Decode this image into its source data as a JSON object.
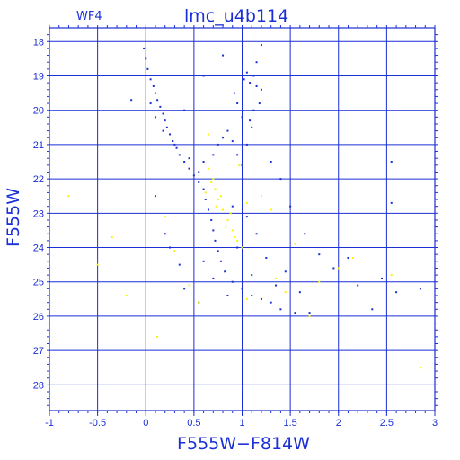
{
  "chart_data": {
    "type": "scatter",
    "title": "lmc_u4b114",
    "corner_label": "WF4",
    "xlabel": "F555W−F814W",
    "ylabel": "F555W",
    "xlim": [
      -1,
      3
    ],
    "ylim": [
      28.75,
      17.6
    ],
    "y_inverted": true,
    "grid": true,
    "xticks": [
      -1,
      -0.5,
      0,
      0.5,
      1,
      1.5,
      2,
      2.5,
      3
    ],
    "xtick_labels": [
      "-1",
      "-0.5",
      "0",
      "0.5",
      "1",
      "1.5",
      "2",
      "2.5",
      "3"
    ],
    "yticks": [
      18,
      19,
      20,
      21,
      22,
      23,
      24,
      25,
      26,
      27,
      28
    ],
    "ytick_labels": [
      "18",
      "19",
      "20",
      "21",
      "22",
      "23",
      "24",
      "25",
      "26",
      "27",
      "28"
    ],
    "colors": {
      "axes": "#1a2fd6",
      "series_blue": "#1a2fd6",
      "series_yellow": "#f5f500"
    },
    "series": [
      {
        "color": "blue",
        "points": [
          [
            -0.02,
            18.2
          ],
          [
            0.0,
            18.5
          ],
          [
            0.02,
            18.8
          ],
          [
            0.05,
            19.1
          ],
          [
            0.08,
            19.3
          ],
          [
            0.1,
            19.5
          ],
          [
            0.12,
            19.7
          ],
          [
            0.15,
            19.9
          ],
          [
            0.18,
            20.1
          ],
          [
            0.2,
            20.3
          ],
          [
            0.22,
            20.5
          ],
          [
            0.25,
            20.7
          ],
          [
            0.28,
            20.9
          ],
          [
            0.32,
            21.1
          ],
          [
            0.35,
            21.3
          ],
          [
            0.4,
            21.5
          ],
          [
            0.45,
            21.7
          ],
          [
            0.5,
            21.9
          ],
          [
            0.55,
            22.1
          ],
          [
            0.6,
            22.3
          ],
          [
            0.62,
            22.6
          ],
          [
            0.65,
            22.9
          ],
          [
            0.68,
            23.2
          ],
          [
            0.7,
            23.5
          ],
          [
            0.72,
            23.8
          ],
          [
            0.75,
            24.1
          ],
          [
            0.78,
            24.4
          ],
          [
            0.82,
            24.7
          ],
          [
            0.9,
            25.0
          ],
          [
            1.0,
            25.2
          ],
          [
            1.1,
            25.4
          ],
          [
            1.2,
            25.5
          ],
          [
            1.3,
            25.6
          ],
          [
            1.4,
            25.8
          ],
          [
            1.55,
            25.9
          ],
          [
            1.7,
            25.9
          ],
          [
            0.05,
            19.8
          ],
          [
            0.1,
            20.2
          ],
          [
            0.18,
            20.6
          ],
          [
            0.3,
            21.0
          ],
          [
            0.45,
            21.4
          ],
          [
            0.55,
            21.8
          ],
          [
            0.6,
            21.5
          ],
          [
            0.7,
            21.3
          ],
          [
            0.75,
            21.0
          ],
          [
            0.8,
            20.8
          ],
          [
            0.85,
            20.6
          ],
          [
            0.9,
            20.9
          ],
          [
            0.95,
            21.3
          ],
          [
            1.0,
            21.6
          ],
          [
            1.05,
            21.0
          ],
          [
            1.1,
            20.5
          ],
          [
            1.0,
            20.2
          ],
          [
            0.95,
            19.8
          ],
          [
            0.92,
            19.5
          ],
          [
            1.02,
            19.1
          ],
          [
            1.05,
            18.9
          ],
          [
            1.08,
            19.2
          ],
          [
            1.12,
            19.0
          ],
          [
            1.15,
            19.3
          ],
          [
            1.2,
            19.4
          ],
          [
            1.18,
            19.8
          ],
          [
            1.12,
            20.0
          ],
          [
            1.08,
            20.3
          ],
          [
            1.15,
            18.6
          ],
          [
            1.2,
            18.1
          ],
          [
            0.8,
            18.4
          ],
          [
            0.6,
            19.0
          ],
          [
            0.4,
            20.0
          ],
          [
            1.3,
            21.5
          ],
          [
            1.4,
            22.0
          ],
          [
            1.5,
            22.8
          ],
          [
            1.65,
            23.6
          ],
          [
            1.8,
            24.2
          ],
          [
            2.1,
            24.3
          ],
          [
            2.45,
            24.9
          ],
          [
            2.6,
            25.3
          ],
          [
            1.95,
            24.6
          ],
          [
            2.2,
            25.1
          ],
          [
            2.35,
            25.8
          ],
          [
            2.55,
            21.5
          ],
          [
            2.55,
            22.7
          ],
          [
            2.85,
            25.2
          ],
          [
            -0.15,
            19.7
          ],
          [
            0.1,
            22.5
          ],
          [
            0.2,
            23.6
          ],
          [
            0.35,
            24.5
          ],
          [
            0.4,
            25.2
          ],
          [
            0.9,
            22.8
          ],
          [
            1.05,
            23.1
          ],
          [
            1.15,
            23.6
          ],
          [
            0.95,
            24.0
          ],
          [
            1.25,
            24.3
          ],
          [
            1.1,
            24.8
          ],
          [
            1.35,
            25.1
          ],
          [
            0.85,
            25.4
          ],
          [
            0.7,
            24.9
          ],
          [
            0.6,
            24.4
          ],
          [
            0.55,
            25.6
          ],
          [
            1.45,
            24.7
          ],
          [
            1.6,
            25.3
          ],
          [
            0.25,
            24.0
          ]
        ]
      },
      {
        "color": "yellow",
        "points": [
          [
            0.65,
            21.7
          ],
          [
            0.7,
            22.0
          ],
          [
            0.72,
            22.3
          ],
          [
            0.75,
            22.6
          ],
          [
            0.8,
            22.9
          ],
          [
            0.85,
            23.2
          ],
          [
            0.9,
            23.5
          ],
          [
            0.95,
            23.8
          ],
          [
            1.0,
            24.0
          ],
          [
            0.68,
            22.1
          ],
          [
            0.78,
            22.5
          ],
          [
            0.88,
            23.0
          ],
          [
            0.62,
            22.4
          ],
          [
            0.73,
            22.8
          ],
          [
            0.83,
            23.4
          ],
          [
            0.92,
            23.7
          ],
          [
            0.97,
            21.6
          ],
          [
            1.05,
            22.7
          ],
          [
            1.2,
            22.5
          ],
          [
            1.3,
            22.9
          ],
          [
            -0.8,
            22.5
          ],
          [
            -0.5,
            24.5
          ],
          [
            -0.35,
            23.7
          ],
          [
            -0.2,
            25.4
          ],
          [
            0.12,
            26.6
          ],
          [
            0.2,
            23.1
          ],
          [
            0.3,
            24.1
          ],
          [
            0.45,
            25.1
          ],
          [
            0.55,
            25.6
          ],
          [
            0.65,
            20.7
          ],
          [
            1.45,
            25.3
          ],
          [
            1.7,
            26.0
          ],
          [
            2.0,
            24.6
          ],
          [
            2.15,
            24.3
          ],
          [
            2.55,
            24.8
          ],
          [
            2.85,
            27.5
          ],
          [
            1.35,
            24.9
          ],
          [
            1.55,
            23.9
          ],
          [
            1.8,
            25.0
          ],
          [
            1.05,
            25.5
          ]
        ]
      }
    ]
  }
}
